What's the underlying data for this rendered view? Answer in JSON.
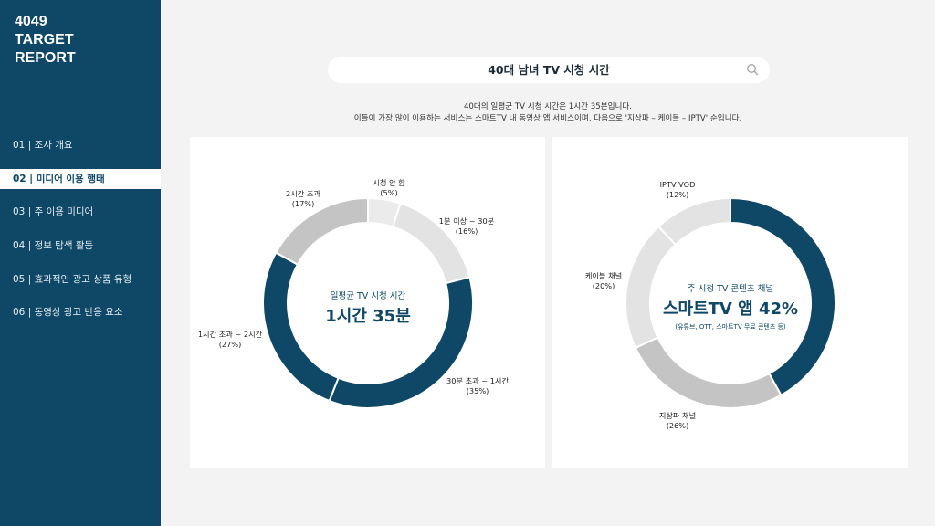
{
  "sidebar": {
    "title_lines": [
      "4049",
      "TARGET",
      "REPORT"
    ],
    "items": [
      {
        "label": "01 | 조사 개요",
        "active": false
      },
      {
        "label": "02 | 미디어 이용 행태",
        "active": true
      },
      {
        "label": "03 | 주 이용 미디어",
        "active": false
      },
      {
        "label": "04 | 정보 탐색 활동",
        "active": false
      },
      {
        "label": "05 | 효과적인 광고 상품 유형",
        "active": false
      },
      {
        "label": "06 | 동영상 광고 반응 요소",
        "active": false
      }
    ]
  },
  "header": {
    "title": "40대 남녀 TV 시청 시간",
    "desc_line1": "40대의 일평균 TV 시청 시간은 1시간 35분입니다.",
    "desc_line2": "이들이 가장 많이 이용하는 서비스는 스마트TV 내 동영상 앱 서비스이며, 다음으로 '지상파 – 케이블 – IPTV' 순입니다."
  },
  "colors": {
    "sidebar_bg": "#0f4766",
    "navy": "#0f4766",
    "mid_gray": "#c4c4c4",
    "light_gray": "#e3e3e3",
    "lighter_gray": "#ebebeb"
  },
  "chart_data": [
    {
      "type": "pie",
      "center_sub": "일평균 TV 시청 시간",
      "center_main": "1시간 35분",
      "slices": [
        {
          "name": "시청 안 함",
          "pct_label": "(5%)",
          "value": 5,
          "color": "#ebebeb"
        },
        {
          "name": "1분 이상 ~ 30분",
          "pct_label": "(16%)",
          "value": 16,
          "color": "#e3e3e3"
        },
        {
          "name": "30분 초과 ~ 1시간",
          "pct_label": "(35%)",
          "value": 35,
          "color": "#0f4766"
        },
        {
          "name": "1시간 초과 ~ 2시간",
          "pct_label": "(27%)",
          "value": 27,
          "color": "#0f4766"
        },
        {
          "name": "2시간 초과",
          "pct_label": "(17%)",
          "value": 17,
          "color": "#c4c4c4"
        }
      ]
    },
    {
      "type": "pie",
      "center_sub": "주 시청 TV 콘텐츠 채널",
      "center_main": "스마트TV 앱 42%",
      "center_note": "(유튜브, OTT, 스마트TV 무료 콘텐츠 등)",
      "slices": [
        {
          "name": "스마트TV 앱",
          "pct_label": "",
          "value": 42,
          "color": "#0f4766"
        },
        {
          "name": "지상파 채널",
          "pct_label": "(26%)",
          "value": 26,
          "color": "#c4c4c4"
        },
        {
          "name": "케이블 채널",
          "pct_label": "(20%)",
          "value": 20,
          "color": "#e3e3e3"
        },
        {
          "name": "IPTV VOD",
          "pct_label": "(12%)",
          "value": 12,
          "color": "#e3e3e3"
        }
      ]
    }
  ]
}
